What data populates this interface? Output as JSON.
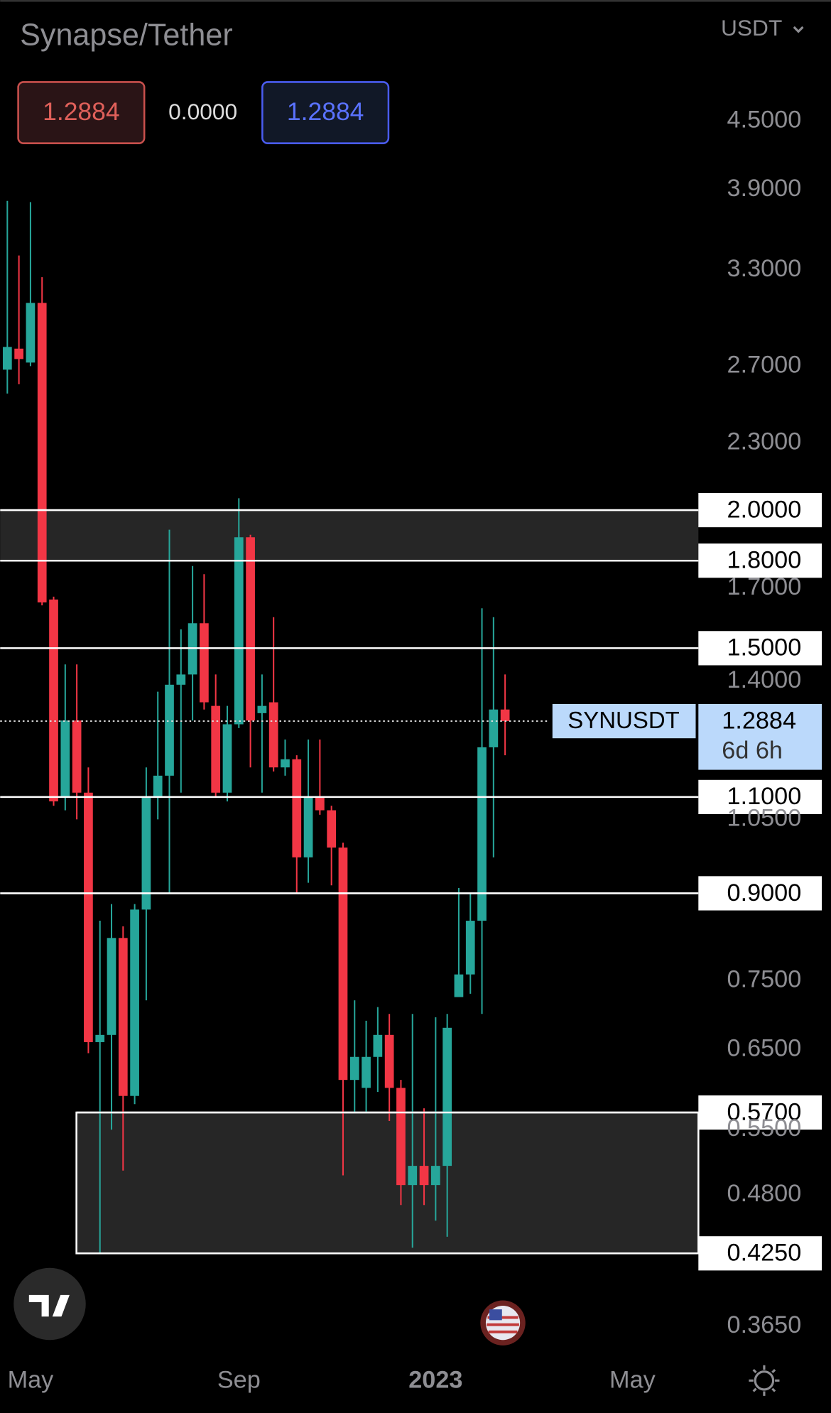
{
  "chart_data": {
    "type": "candlestick",
    "title": "Synapse/Tether",
    "currency": "USDT",
    "quote": {
      "bid": 1.2884,
      "change": {
        "value": 0,
        "label": "0.0000"
      },
      "ask": 1.2884
    },
    "log_scale": true,
    "grid": false,
    "up_color": "#26a69a",
    "down_color": "#f23645",
    "x": [
      0,
      1,
      2,
      3,
      4,
      5,
      6,
      7,
      8,
      9,
      10,
      11,
      12,
      13,
      14,
      15,
      16,
      17,
      18,
      19,
      20,
      21,
      22,
      23,
      24,
      25,
      26,
      27,
      28,
      29,
      30,
      31,
      32,
      33,
      34,
      35,
      36,
      37,
      38,
      39,
      40,
      41,
      42,
      43
    ],
    "open": [
      2.68,
      2.8,
      2.72,
      3.08,
      1.66,
      1.1,
      1.29,
      1.11,
      0.66,
      0.67,
      0.82,
      0.59,
      0.87,
      1.1,
      1.15,
      1.39,
      1.42,
      1.58,
      1.33,
      1.11,
      1.28,
      1.89,
      1.31,
      1.34,
      1.17,
      1.19,
      0.97,
      1.1,
      1.07,
      0.99,
      0.61,
      0.6,
      0.64,
      0.67,
      0.6,
      0.49,
      0.51,
      0.49,
      0.51,
      0.725,
      0.76,
      0.85,
      1.22,
      1.32
    ],
    "high": [
      3.81,
      3.4,
      3.8,
      3.25,
      1.67,
      1.45,
      1.45,
      1.17,
      0.85,
      0.88,
      0.84,
      0.88,
      1.17,
      1.37,
      1.92,
      1.56,
      1.78,
      1.75,
      1.42,
      1.33,
      2.05,
      1.9,
      1.42,
      1.6,
      1.24,
      1.2,
      1.24,
      1.24,
      1.08,
      1.0,
      0.72,
      0.69,
      0.71,
      0.7,
      0.61,
      0.7,
      0.575,
      0.695,
      0.7,
      0.91,
      0.9,
      1.63,
      1.6,
      1.42
    ],
    "low": [
      2.55,
      2.6,
      2.7,
      1.64,
      1.08,
      1.07,
      1.05,
      0.645,
      0.425,
      0.55,
      0.505,
      0.58,
      0.72,
      1.05,
      0.9,
      1.11,
      1.29,
      1.32,
      1.1,
      1.09,
      1.27,
      1.17,
      1.11,
      1.16,
      1.15,
      0.9,
      0.92,
      1.06,
      0.915,
      0.5,
      0.57,
      0.57,
      0.595,
      0.56,
      0.47,
      0.43,
      0.47,
      0.455,
      0.44,
      0.725,
      0.73,
      0.7,
      0.97,
      1.2
    ],
    "close": [
      2.81,
      2.74,
      3.08,
      1.65,
      1.09,
      1.29,
      1.11,
      0.66,
      0.67,
      0.82,
      0.59,
      0.87,
      1.1,
      1.15,
      1.39,
      1.42,
      1.58,
      1.34,
      1.11,
      1.28,
      1.89,
      1.29,
      1.33,
      1.17,
      1.19,
      0.97,
      1.1,
      1.07,
      0.99,
      0.61,
      0.64,
      0.64,
      0.67,
      0.6,
      0.49,
      0.51,
      0.49,
      0.51,
      0.68,
      0.76,
      0.85,
      1.22,
      1.32,
      1.2884
    ],
    "xlim": [
      -0.62,
      59.7
    ],
    "xticks": [
      {
        "value": 2,
        "label": "May"
      },
      {
        "value": 20,
        "label": "Sep"
      },
      {
        "value": 37,
        "label": "2023"
      },
      {
        "value": 54,
        "label": "May"
      }
    ],
    "ylim": [
      0.343,
      5.79
    ],
    "yticks": [
      {
        "value": 4.5,
        "label": "4.5000"
      },
      {
        "value": 3.9,
        "label": "3.9000"
      },
      {
        "value": 3.3,
        "label": "3.3000"
      },
      {
        "value": 2.7,
        "label": "2.7000"
      },
      {
        "value": 2.3,
        "label": "2.3000"
      },
      {
        "value": 1.7,
        "label": "1.7000"
      },
      {
        "value": 1.4,
        "label": "1.4000"
      },
      {
        "value": 1.05,
        "label": "1.0500"
      },
      {
        "value": 0.75,
        "label": "0.7500"
      },
      {
        "value": 0.65,
        "label": "0.6500"
      },
      {
        "value": 0.55,
        "label": "0.5500"
      },
      {
        "value": 0.48,
        "label": "0.4800"
      },
      {
        "value": 0.365,
        "label": "0.3650"
      }
    ],
    "levels": [
      {
        "value": 2,
        "label": "2.0000"
      },
      {
        "value": 1.8,
        "label": "1.8000"
      },
      {
        "value": 1.5,
        "label": "1.5000"
      },
      {
        "value": 1.1,
        "label": "1.1000"
      },
      {
        "value": 0.9,
        "label": "0.9000"
      },
      {
        "value": 0.57,
        "label": "0.5700"
      },
      {
        "value": 0.425,
        "label": "0.4250"
      }
    ],
    "zones": [
      {
        "low": 1.8,
        "high": 2
      },
      {
        "low": 0.425,
        "high": 0.57,
        "x_start": 5.97
      }
    ],
    "last": {
      "symbol": "SYNUSDT",
      "value": 1.2884,
      "countdown": "6d 6h"
    }
  }
}
